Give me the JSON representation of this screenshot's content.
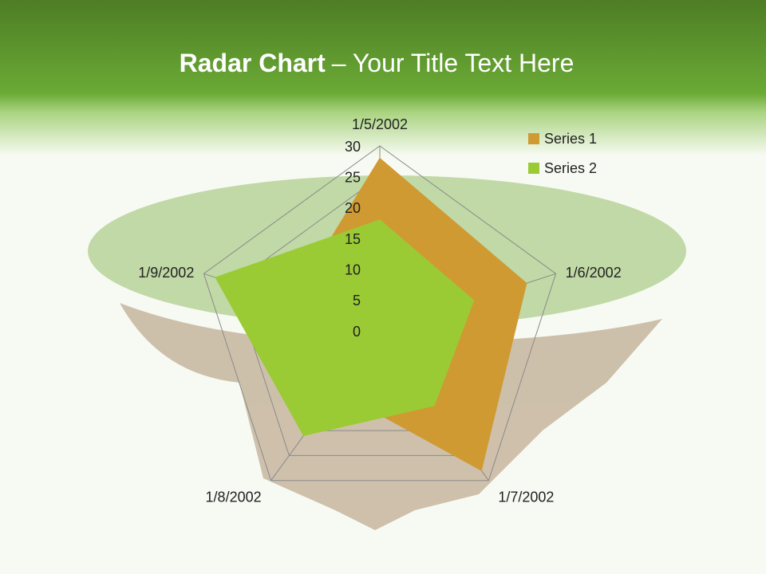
{
  "chart_data": {
    "type": "radar",
    "title": "Radar Chart",
    "subtitle": "– Your Title Text Here",
    "categories": [
      "1/5/2002",
      "1/6/2002",
      "1/7/2002",
      "1/8/2002",
      "1/9/2002"
    ],
    "series": [
      {
        "name": "Series 1",
        "color": "#d09a32",
        "values": [
          28,
          25,
          28,
          12,
          15
        ]
      },
      {
        "name": "Series 2",
        "color": "#9acb34",
        "values": [
          18,
          16,
          15,
          21,
          28
        ]
      }
    ],
    "rlim": [
      0,
      30
    ],
    "rticks": [
      0,
      5,
      10,
      15,
      20,
      25,
      30
    ],
    "grid": true,
    "legend": "top-right"
  }
}
